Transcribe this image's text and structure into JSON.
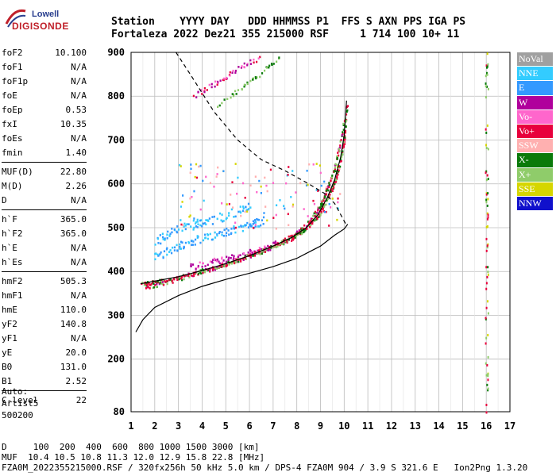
{
  "logo": {
    "line1": "Lowell",
    "line2": "DIGISONDE"
  },
  "header": {
    "row1": "Station    YYYY DAY   DDD HHMMSS P1  FFS S AXN PPS IGA PS",
    "row2": "Fortaleza 2022 Dez21 355 215000 RSF     1 714 100 10+ 11"
  },
  "params": [
    [
      [
        "foF2",
        "10.100"
      ],
      [
        "foF1",
        "N/A"
      ],
      [
        "foF1p",
        "N/A"
      ],
      [
        "foE",
        "N/A"
      ],
      [
        "foEp",
        "0.53"
      ],
      [
        "fxI",
        "10.35"
      ],
      [
        "foEs",
        "N/A"
      ],
      [
        "fmin",
        "1.40"
      ]
    ],
    [
      [
        "MUF(D)",
        "22.80"
      ],
      [
        "M(D)",
        "2.26"
      ],
      [
        "D",
        "N/A"
      ]
    ],
    [
      [
        "h`F",
        "365.0"
      ],
      [
        "h`F2",
        "365.0"
      ],
      [
        "h`E",
        "N/A"
      ],
      [
        "h`Es",
        "N/A"
      ]
    ],
    [
      [
        "hmF2",
        "505.3"
      ],
      [
        "hmF1",
        "N/A"
      ],
      [
        "hmE",
        "110.0"
      ],
      [
        "yF2",
        "140.8"
      ],
      [
        "yF1",
        "N/A"
      ],
      [
        "yE",
        "20.0"
      ],
      [
        "B0",
        "131.0"
      ],
      [
        "B1",
        "2.52"
      ]
    ],
    [
      [
        "C-level",
        "22"
      ]
    ]
  ],
  "auto": {
    "l1": "Auto:",
    "l2": "Artist5",
    "l3": "500200"
  },
  "legend": [
    {
      "label": "NoVal",
      "color": "#a0a0a0"
    },
    {
      "label": "NNE",
      "color": "#33ccff"
    },
    {
      "label": "E",
      "color": "#3399ff"
    },
    {
      "label": "W",
      "color": "#b0009c"
    },
    {
      "label": "Vo-",
      "color": "#ff66cc"
    },
    {
      "label": "Vo+",
      "color": "#e8003c"
    },
    {
      "label": "SSW",
      "color": "#ffb0b0"
    },
    {
      "label": "X-",
      "color": "#0a7a0a"
    },
    {
      "label": "X+",
      "color": "#8fcc6a"
    },
    {
      "label": "SSE",
      "color": "#d6d600"
    },
    {
      "label": "NNW",
      "color": "#1010cc"
    }
  ],
  "chart_data": {
    "type": "scatter",
    "xlim": [
      1,
      17
    ],
    "ylim": [
      80,
      900
    ],
    "x_ticks": [
      1,
      2,
      3,
      4,
      5,
      6,
      7,
      8,
      9,
      10,
      11,
      12,
      13,
      14,
      15,
      16,
      17
    ],
    "y_ticks": [
      80,
      200,
      300,
      400,
      500,
      600,
      700,
      800,
      900
    ],
    "grid": true,
    "profile_solid": [
      [
        1.2,
        262
      ],
      [
        1.5,
        290
      ],
      [
        2,
        318
      ],
      [
        3,
        345
      ],
      [
        4,
        366
      ],
      [
        5,
        382
      ],
      [
        6,
        396
      ],
      [
        7,
        411
      ],
      [
        8,
        430
      ],
      [
        9,
        458
      ],
      [
        9.6,
        483
      ],
      [
        10,
        497
      ],
      [
        10.15,
        508
      ]
    ],
    "profile_dashed": [
      [
        2.9,
        900
      ],
      [
        3.5,
        850
      ],
      [
        4.5,
        765
      ],
      [
        5.5,
        700
      ],
      [
        6.5,
        655
      ],
      [
        7.5,
        630
      ],
      [
        8.5,
        600
      ],
      [
        9.2,
        577
      ],
      [
        9.6,
        555
      ],
      [
        10.1,
        505
      ]
    ],
    "trace_x_solid": [
      [
        1.4,
        372
      ],
      [
        2,
        378
      ],
      [
        3,
        388
      ],
      [
        4,
        402
      ],
      [
        5,
        418
      ],
      [
        6,
        436
      ],
      [
        7,
        458
      ],
      [
        7.8,
        478
      ],
      [
        8.4,
        500
      ],
      [
        8.9,
        530
      ],
      [
        9.3,
        570
      ],
      [
        9.6,
        610
      ],
      [
        9.85,
        660
      ],
      [
        10,
        710
      ],
      [
        10.1,
        790
      ]
    ],
    "trace_o_echo": [
      [
        1.6,
        365
      ],
      [
        2.5,
        377
      ],
      [
        3.5,
        395
      ],
      [
        4.5,
        410
      ],
      [
        5.5,
        428
      ],
      [
        6.5,
        448
      ],
      [
        7.3,
        468
      ],
      [
        8,
        490
      ],
      [
        8.6,
        520
      ],
      [
        9,
        555
      ],
      [
        9.3,
        595
      ],
      [
        9.6,
        640
      ],
      [
        9.8,
        690
      ],
      [
        10,
        750
      ]
    ],
    "trace_w": [
      [
        3.5,
        412
      ],
      [
        4.5,
        425
      ],
      [
        5.5,
        438
      ],
      [
        6.5,
        452
      ],
      [
        7.3,
        470
      ]
    ],
    "trace_e_low": [
      [
        2,
        435
      ],
      [
        3,
        460
      ],
      [
        4,
        478
      ],
      [
        5,
        492
      ],
      [
        6,
        508
      ],
      [
        6.6,
        518
      ]
    ],
    "trace_e_high": [
      [
        2,
        470
      ],
      [
        3,
        500
      ],
      [
        4,
        515
      ],
      [
        5,
        530
      ],
      [
        6,
        548
      ]
    ],
    "trace_upper_w": [
      [
        3.6,
        800
      ],
      [
        4.5,
        830
      ],
      [
        5.5,
        865
      ],
      [
        6.5,
        892
      ]
    ],
    "trace_upper_x": [
      [
        4.6,
        780
      ],
      [
        5.5,
        815
      ],
      [
        6.5,
        855
      ],
      [
        7.3,
        895
      ]
    ],
    "noise_col_x": 16.0
  },
  "footer": {
    "l1": "D     100  200  400  600  800 1000 1500 3000 [km]",
    "l2": "MUF  10.4 10.5 10.8 11.3 12.0 12.9 15.8 22.8 [MHz]",
    "l3": "FZA0M_2022355215000.RSF / 320fx256h 50 kHz 5.0 km / DPS-4 FZA0M 904 / 3.9 S 321.6 E   Ion2Png 1.3.20"
  }
}
